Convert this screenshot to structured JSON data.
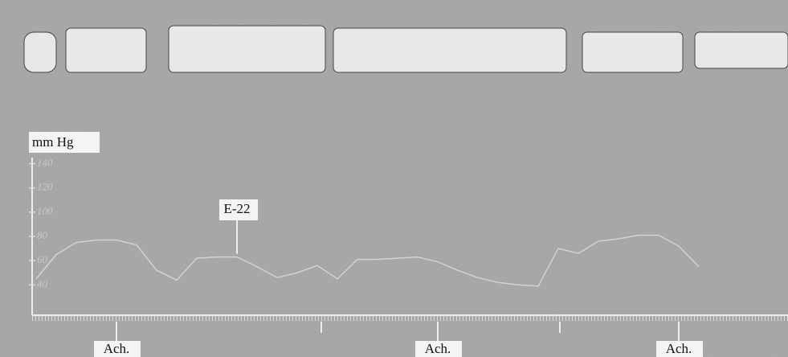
{
  "chart_data": {
    "type": "line",
    "y_label": "mm Hg",
    "categories": [
      null,
      null,
      null,
      null,
      null,
      null,
      null,
      null,
      null,
      null,
      null,
      null,
      null,
      null,
      null,
      null,
      null,
      null,
      null,
      null,
      null,
      null,
      null,
      null,
      null,
      null,
      null,
      null,
      null,
      null,
      null,
      null,
      null,
      null
    ],
    "values": [
      45,
      65,
      75,
      77,
      77,
      73,
      52,
      44,
      62,
      63,
      63,
      55,
      46,
      50,
      56,
      45,
      61,
      61,
      62,
      63,
      59,
      52,
      46,
      42,
      40,
      39,
      70,
      66,
      76,
      78,
      81,
      81,
      72,
      55
    ],
    "color": "#d2d2d2",
    "ylim": [
      15,
      145
    ],
    "yticks": [
      40,
      60,
      80,
      100,
      120,
      140
    ],
    "annotations": [
      {
        "text": "E-22",
        "index": 10
      },
      {
        "text": "Ach.",
        "index": 4
      },
      {
        "text": "Ach.",
        "index": 20
      },
      {
        "text": "Ach.",
        "index": 32
      }
    ]
  }
}
